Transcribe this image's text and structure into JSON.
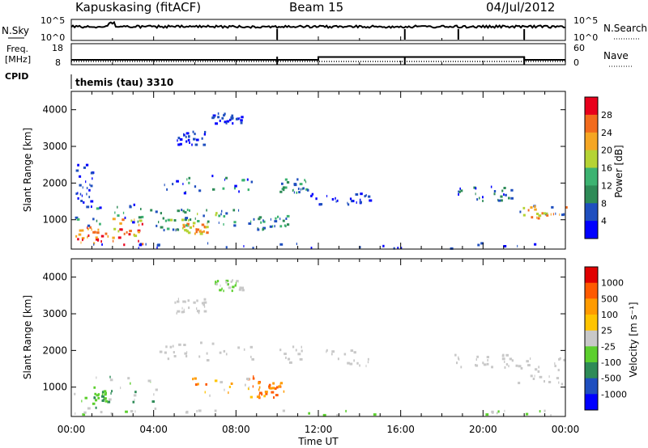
{
  "header": {
    "station": "Kapuskasing (fitACF)",
    "beam": "Beam 15",
    "date": "04/Jul/2012"
  },
  "nsky_panel": {
    "left_label": "N.Sky",
    "right_label": "N.Search",
    "left_ticks": [
      "10^5",
      "10^0"
    ],
    "right_ticks": [
      "10^5",
      "10^0"
    ]
  },
  "freq_panel": {
    "left_label_1": "Freq.",
    "left_label_2": "[MHz]",
    "right_label": "Nave",
    "left_ticks": [
      "18",
      "8"
    ],
    "right_ticks": [
      "60",
      "0"
    ]
  },
  "cpid_panel": {
    "label": "CPID",
    "text": "themis (tau) 3310"
  },
  "colors": {
    "power_scale": [
      "#0000ff",
      "#1f4fbf",
      "#2e8b57",
      "#3cb371",
      "#b5d334",
      "#f5a623",
      "#f26b1d",
      "#e8001c"
    ],
    "velocity_scale": [
      "#e00000",
      "#ff5a00",
      "#ff9b00",
      "#ffc400",
      "#c8c8c8",
      "#5ccf2e",
      "#2e8b57",
      "#1f4fbf",
      "#0000ff"
    ]
  },
  "chart_data": [
    {
      "type": "heatmap",
      "panel": "power",
      "ylabel": "Slant Range [km]",
      "yticks": [
        "1000",
        "2000",
        "3000",
        "4000"
      ],
      "ylim": [
        200,
        4500
      ],
      "colorbar_label": "Power [dB]",
      "colorbar_ticks": [
        "4",
        "8",
        "12",
        "16",
        "20",
        "24",
        "28"
      ],
      "xlim": [
        0,
        24
      ],
      "blobs": [
        {
          "t0": 0.0,
          "t1": 1.8,
          "r0": 300,
          "r1": 800,
          "c": [
            6,
            7,
            5
          ]
        },
        {
          "t0": 1.8,
          "t1": 3.9,
          "r0": 300,
          "r1": 1100,
          "c": [
            6,
            5,
            7,
            4
          ]
        },
        {
          "t0": 0.0,
          "t1": 4.2,
          "r0": 800,
          "r1": 1400,
          "c": [
            2,
            1,
            3,
            0
          ]
        },
        {
          "t0": 0.2,
          "t1": 1.0,
          "r0": 1400,
          "r1": 2500,
          "c": [
            1,
            0
          ]
        },
        {
          "t0": 4.2,
          "t1": 5.8,
          "r0": 700,
          "r1": 1300,
          "c": [
            3,
            2,
            4,
            1
          ]
        },
        {
          "t0": 5.2,
          "t1": 6.6,
          "r0": 600,
          "r1": 900,
          "c": [
            5,
            6,
            4
          ]
        },
        {
          "t0": 4.5,
          "t1": 8.8,
          "r0": 1700,
          "r1": 2200,
          "c": [
            2,
            1,
            3,
            0
          ]
        },
        {
          "t0": 5.5,
          "t1": 9.0,
          "r0": 800,
          "r1": 1300,
          "c": [
            3,
            2,
            1,
            4
          ]
        },
        {
          "t0": 9.0,
          "t1": 10.5,
          "r0": 700,
          "r1": 1100,
          "c": [
            2,
            3,
            1
          ]
        },
        {
          "t0": 6.8,
          "t1": 8.3,
          "r0": 3600,
          "r1": 3900,
          "c": [
            0,
            1
          ]
        },
        {
          "t0": 5.0,
          "t1": 6.5,
          "r0": 3000,
          "r1": 3400,
          "c": [
            0,
            1
          ]
        },
        {
          "t0": 10.0,
          "t1": 11.5,
          "r0": 1700,
          "r1": 2100,
          "c": [
            1,
            2,
            3
          ]
        },
        {
          "t0": 11.5,
          "t1": 14.5,
          "r0": 1400,
          "r1": 1700,
          "c": [
            0,
            1
          ]
        },
        {
          "t0": 18.5,
          "t1": 21.5,
          "r0": 1500,
          "r1": 1900,
          "c": [
            0,
            1,
            2
          ]
        },
        {
          "t0": 21.5,
          "t1": 24.0,
          "r0": 1000,
          "r1": 1400,
          "c": [
            5,
            4,
            6,
            1
          ]
        },
        {
          "t0": 0.0,
          "t1": 24.0,
          "r0": 200,
          "r1": 350,
          "c": [
            0,
            1
          ]
        }
      ]
    },
    {
      "type": "heatmap",
      "panel": "velocity",
      "ylabel": "Slant Range [km]",
      "yticks": [
        "1000",
        "2000",
        "3000",
        "4000"
      ],
      "ylim": [
        200,
        4500
      ],
      "xlabel": "Time UT",
      "xticks": [
        "00:00",
        "04:00",
        "08:00",
        "12:00",
        "16:00",
        "20:00",
        "00:00"
      ],
      "xlim": [
        0,
        24
      ],
      "colorbar_label": "Velocity [m s⁻¹]",
      "colorbar_ticks": [
        "-1000",
        "-500",
        "-100",
        "-25",
        "25",
        "100",
        "500",
        "1000"
      ],
      "blobs": [
        {
          "t0": 0.0,
          "t1": 4.2,
          "r0": 300,
          "r1": 1300,
          "c": [
            4,
            4,
            5,
            6
          ]
        },
        {
          "t0": 1.0,
          "t1": 2.0,
          "r0": 500,
          "r1": 900,
          "c": [
            6,
            5
          ]
        },
        {
          "t0": 4.2,
          "t1": 8.8,
          "r0": 1700,
          "r1": 2200,
          "c": [
            4
          ]
        },
        {
          "t0": 5.5,
          "t1": 9.5,
          "r0": 700,
          "r1": 1300,
          "c": [
            1,
            2,
            4,
            3
          ]
        },
        {
          "t0": 9.0,
          "t1": 10.5,
          "r0": 700,
          "r1": 1100,
          "c": [
            1,
            2
          ]
        },
        {
          "t0": 6.8,
          "t1": 8.3,
          "r0": 3600,
          "r1": 3900,
          "c": [
            4,
            5
          ]
        },
        {
          "t0": 5.0,
          "t1": 6.5,
          "r0": 3000,
          "r1": 3400,
          "c": [
            4
          ]
        },
        {
          "t0": 10.0,
          "t1": 14.5,
          "r0": 1400,
          "r1": 2100,
          "c": [
            4
          ]
        },
        {
          "t0": 18.5,
          "t1": 21.5,
          "r0": 1500,
          "r1": 1900,
          "c": [
            4
          ]
        },
        {
          "t0": 21.5,
          "t1": 24.0,
          "r0": 1000,
          "r1": 1800,
          "c": [
            4
          ]
        },
        {
          "t0": 0.0,
          "t1": 24.0,
          "r0": 200,
          "r1": 350,
          "c": [
            5,
            4
          ]
        }
      ]
    }
  ]
}
